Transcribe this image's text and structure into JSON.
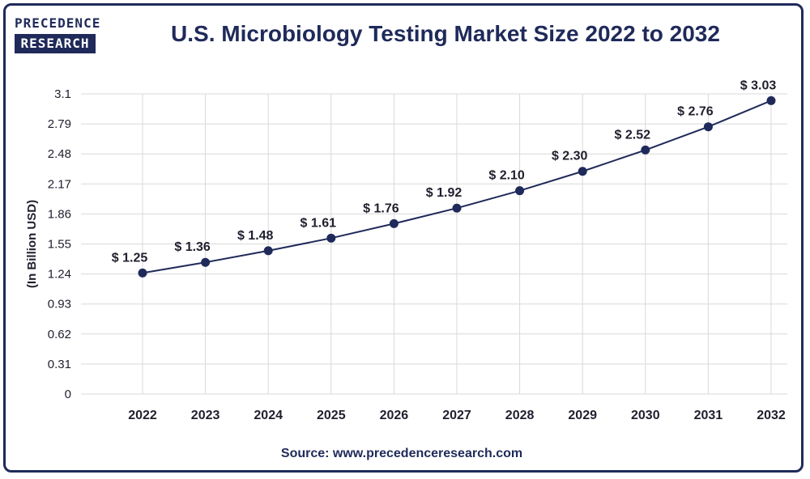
{
  "logo": {
    "line1": "PRECEDENCE",
    "line2": "RESEARCH"
  },
  "colors": {
    "navy": "#1f2a5a",
    "grid": "#d9d9d9",
    "text": "#1f1f2e"
  },
  "source": "Source: www.precedenceresearch.com",
  "chart_data": {
    "type": "line",
    "title": "U.S. Microbiology Testing Market Size 2022 to 2032",
    "xlabel": "",
    "ylabel": "(In Billion USD)",
    "categories": [
      "2022",
      "2023",
      "2024",
      "2025",
      "2026",
      "2027",
      "2028",
      "2029",
      "2030",
      "2031",
      "2032"
    ],
    "values": [
      1.25,
      1.36,
      1.48,
      1.61,
      1.76,
      1.92,
      2.1,
      2.3,
      2.52,
      2.76,
      3.03
    ],
    "data_labels": [
      "$ 1.25",
      "$ 1.36",
      "$ 1.48",
      "$ 1.61",
      "$ 1.76",
      "$ 1.92",
      "$ 2.10",
      "$ 2.30",
      "$ 2.52",
      "$ 2.76",
      "$ 3.03"
    ],
    "yticks": [
      0,
      0.31,
      0.62,
      0.93,
      1.24,
      1.55,
      1.86,
      2.17,
      2.48,
      2.79,
      3.1
    ],
    "ytick_labels": [
      "0",
      "0.31",
      "0.62",
      "0.93",
      "1.24",
      "1.55",
      "1.86",
      "2.17",
      "2.48",
      "2.79",
      "3.1"
    ],
    "ylim": [
      0,
      3.1
    ],
    "grid": true,
    "legend": "none"
  }
}
